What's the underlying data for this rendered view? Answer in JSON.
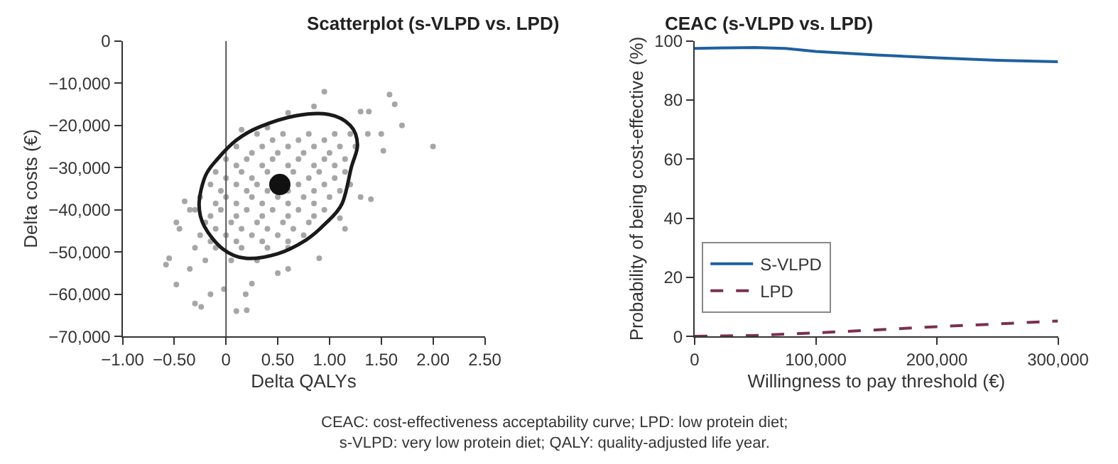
{
  "chart_data": [
    {
      "type": "scatter",
      "title": "Scatterplot (s-VLPD vs. LPD)",
      "xlabel": "Delta QALYs",
      "ylabel": "Delta costs (€)",
      "xlim": [
        -1,
        2.5
      ],
      "ylim": [
        -70000,
        0
      ],
      "xticks": [
        {
          "value": -1,
          "label": "−1.00"
        },
        {
          "value": -0.5,
          "label": "−0.50"
        },
        0,
        {
          "value": 0.5,
          "label": "0.50"
        },
        {
          "value": 1,
          "label": "1.00"
        },
        {
          "value": 1.5,
          "label": "1.50"
        },
        {
          "value": 2,
          "label": "2.00"
        },
        {
          "value": 2.5,
          "label": "2.50"
        }
      ],
      "yticks": [
        {
          "value": -70000,
          "label": "−70,000"
        },
        {
          "value": -60000,
          "label": "−60,000"
        },
        {
          "value": -50000,
          "label": "−50,000"
        },
        {
          "value": -40000,
          "label": "−40,000"
        },
        {
          "value": -30000,
          "label": "−30,000"
        },
        {
          "value": -20000,
          "label": "−20,000"
        },
        {
          "value": -10000,
          "label": "−10,000"
        },
        0
      ],
      "legend": false,
      "ref_lines": [
        {
          "axis": "x",
          "value": 0,
          "color": "#555555"
        }
      ],
      "series": [
        {
          "type": "scatter",
          "marker": "circle",
          "color": "#a6a6a6",
          "x": [
            0.95,
            1.58,
            1.63,
            1.7,
            2.0,
            1.5,
            1.52,
            1.38,
            1.3,
            1.37,
            1.4,
            1.3,
            -0.58,
            -0.55,
            -0.48,
            -0.45,
            -0.48,
            -0.3,
            -0.24,
            0.1,
            0.2,
            0.9,
            -0.15,
            -0.02,
            0.19,
            0.25,
            -0.35,
            -0.3,
            0.5,
            0.6,
            1.15,
            1.1,
            0.85,
            0.6,
            0.4,
            0.15,
            -0.35,
            -0.4,
            0.3,
            0.55,
            0.8,
            1.05,
            1.2,
            0.1,
            0.35,
            0.6,
            0.85,
            1.1,
            1.25,
            0.0,
            0.2,
            0.45,
            0.7,
            0.95,
            1.15,
            -0.1,
            0.15,
            0.4,
            0.65,
            0.9,
            1.15,
            -0.15,
            0.1,
            0.3,
            0.7,
            0.95,
            1.2,
            -0.25,
            0.0,
            0.25,
            0.5,
            0.75,
            1.0,
            -0.3,
            -0.05,
            0.2,
            0.45,
            0.7,
            0.95,
            -0.2,
            0.05,
            0.3,
            0.55,
            0.8,
            -0.25,
            0.0,
            0.25,
            0.5,
            0.75,
            -0.1,
            0.15,
            0.4,
            0.6,
            -0.2,
            0.05,
            0.3,
            0.45,
            0.7,
            0.95,
            0.25,
            0.5,
            0.75,
            1.0,
            0.1,
            0.35,
            0.6,
            0.85,
            1.05,
            0.0,
            0.25,
            0.8,
            1.05,
            -0.05,
            0.2,
            0.4,
            0.6,
            0.85,
            1.1,
            -0.1,
            0.1,
            0.35,
            0.6,
            0.85,
            -0.15,
            0.1,
            0.35,
            0.6,
            0.85,
            -0.1,
            0.15,
            0.4,
            0.65,
            -0.15,
            0.1,
            0.35,
            0.6
          ],
          "values": [
            -12000,
            -12700,
            -15000,
            -20000,
            -25000,
            -22000,
            -26000,
            -16700,
            -16700,
            -22000,
            -37500,
            -37000,
            -53000,
            -51500,
            -43000,
            -44500,
            -57700,
            -62200,
            -63000,
            -64000,
            -63800,
            -51500,
            -60000,
            -58800,
            -60000,
            -57500,
            -54000,
            -49000,
            -55000,
            -54000,
            -44500,
            -42000,
            -15500,
            -17000,
            -20500,
            -21000,
            -40000,
            -38000,
            -22000,
            -22000,
            -22000,
            -22000,
            -22000,
            -25000,
            -25000,
            -25000,
            -25000,
            -25000,
            -25000,
            -28000,
            -28000,
            -28000,
            -28000,
            -28000,
            -28000,
            -31000,
            -31000,
            -31000,
            -31000,
            -31000,
            -31000,
            -34000,
            -34000,
            -34000,
            -34000,
            -34000,
            -34000,
            -37000,
            -37000,
            -37000,
            -37000,
            -37000,
            -37000,
            -40000,
            -40000,
            -40000,
            -40000,
            -40000,
            -40000,
            -43000,
            -43000,
            -43000,
            -43000,
            -43000,
            -46000,
            -46000,
            -46000,
            -46000,
            -46000,
            -49000,
            -49000,
            -49000,
            -49000,
            -52000,
            -52000,
            -52000,
            -23500,
            -23500,
            -23500,
            -26500,
            -26500,
            -26500,
            -26500,
            -29500,
            -29500,
            -29500,
            -29500,
            -29500,
            -32500,
            -32500,
            -32500,
            -32500,
            -35500,
            -35500,
            -35500,
            -35500,
            -35500,
            -35500,
            -38500,
            -38500,
            -38500,
            -38500,
            -38500,
            -41500,
            -41500,
            -41500,
            -41500,
            -41500,
            -44500,
            -44500,
            -44500,
            -44500,
            -47500,
            -47500,
            -47500,
            -47500
          ]
        },
        {
          "type": "scatter",
          "marker": "circle",
          "color": "#111111",
          "x": [
            0.52
          ],
          "values": [
            -34000
          ]
        }
      ],
      "annotations": [
        "CEAC: cost-effectiveness acceptability curve; LPD: low protein diet;\ns-VLPD: very low protein diet; QALY: quality-adjusted life year."
      ]
    },
    {
      "type": "line",
      "title": "CEAC (s-VLPD vs. LPD)",
      "xlabel": "Willingness to pay threshold (€)",
      "ylabel": "Probability of being cost-effective (%)",
      "xlim": [
        0,
        300000
      ],
      "ylim": [
        0,
        100
      ],
      "xticks": [
        0,
        {
          "value": 100000,
          "label": "100,000"
        },
        {
          "value": 200000,
          "label": "200,000"
        },
        {
          "value": 300000,
          "label": "300,000"
        }
      ],
      "yticks": [
        0,
        20,
        40,
        60,
        80,
        100
      ],
      "legend": "bottom left",
      "marker": "none",
      "series": [
        {
          "name": "S-VLPD",
          "color": "#1f5fa0",
          "line_style": "solid",
          "x": [
            0,
            25000,
            50000,
            75000,
            100000,
            150000,
            200000,
            250000,
            300000
          ],
          "values": [
            97.5,
            97.7,
            97.8,
            97.5,
            96.5,
            95.3,
            94.3,
            93.5,
            93
          ]
        },
        {
          "name": "LPD",
          "color": "#7a3050",
          "line_style": "dashed",
          "x": [
            0,
            50000,
            100000,
            150000,
            200000,
            250000,
            300000
          ],
          "values": [
            0,
            0.3,
            1.2,
            2.2,
            3.3,
            4.2,
            5.2
          ]
        }
      ]
    }
  ]
}
